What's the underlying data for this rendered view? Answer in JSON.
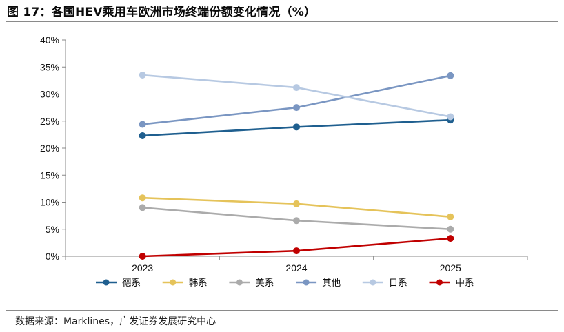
{
  "header": {
    "title": "图 17：各国HEV乘用车欧洲市场终端份额变化情况（%）"
  },
  "footer": {
    "source": "数据来源：Marklines，广发证券发展研究中心"
  },
  "chart_data": {
    "type": "line",
    "title": "",
    "xlabel": "",
    "ylabel": "",
    "categories": [
      "2023",
      "2024",
      "2025"
    ],
    "ylim": [
      0,
      40
    ],
    "yticks": [
      0,
      5,
      10,
      15,
      20,
      25,
      30,
      35,
      40
    ],
    "ytick_labels": [
      "0%",
      "5%",
      "10%",
      "15%",
      "20%",
      "25%",
      "30%",
      "35%",
      "40%"
    ],
    "grid": false,
    "legend_position": "bottom",
    "series": [
      {
        "name": "德系",
        "color": "#1f5f8f",
        "values": [
          22.3,
          23.9,
          25.2
        ]
      },
      {
        "name": "韩系",
        "color": "#e5c35a",
        "values": [
          10.8,
          9.7,
          7.3
        ]
      },
      {
        "name": "美系",
        "color": "#ababab",
        "values": [
          9.0,
          6.6,
          5.0
        ]
      },
      {
        "name": "其他",
        "color": "#7a96c2",
        "values": [
          24.4,
          27.5,
          33.4
        ]
      },
      {
        "name": "日系",
        "color": "#b7c9e2",
        "values": [
          33.5,
          31.2,
          25.8
        ]
      },
      {
        "name": "中系",
        "color": "#c00000",
        "values": [
          0.0,
          1.0,
          3.3
        ]
      }
    ]
  }
}
